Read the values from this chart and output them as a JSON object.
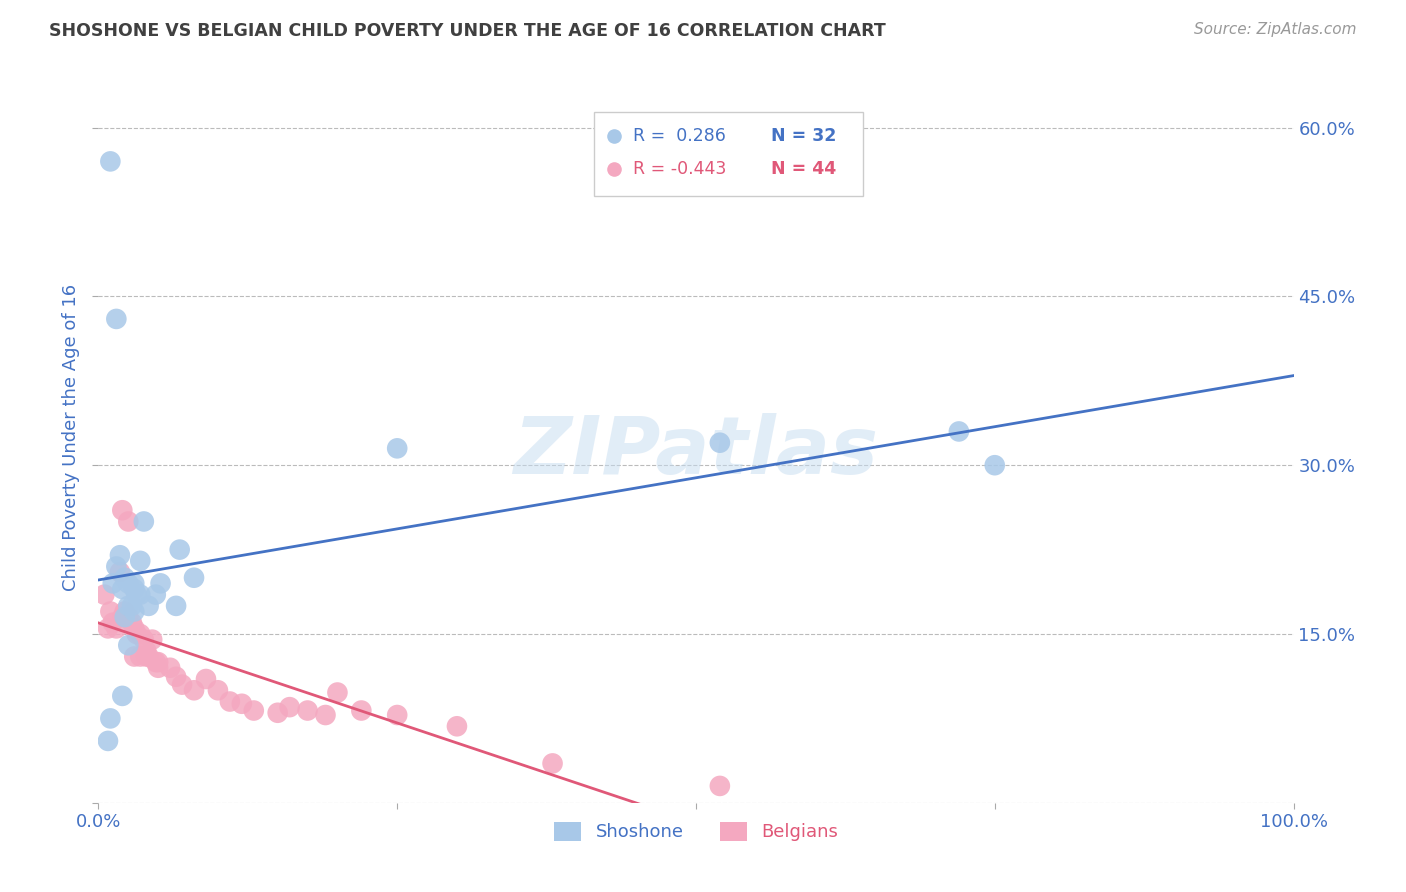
{
  "title": "SHOSHONE VS BELGIAN CHILD POVERTY UNDER THE AGE OF 16 CORRELATION CHART",
  "source": "Source: ZipAtlas.com",
  "ylabel": "Child Poverty Under the Age of 16",
  "xlim": [
    0,
    1.0
  ],
  "ylim": [
    0,
    0.65
  ],
  "xticks": [
    0.0,
    0.25,
    0.5,
    0.75,
    1.0
  ],
  "xtick_labels": [
    "0.0%",
    "",
    "",
    "",
    "100.0%"
  ],
  "yticks": [
    0.0,
    0.15,
    0.3,
    0.45,
    0.6
  ],
  "ytick_labels": [
    "",
    "15.0%",
    "30.0%",
    "45.0%",
    "60.0%"
  ],
  "shoshone_x": [
    0.008,
    0.01,
    0.012,
    0.015,
    0.018,
    0.02,
    0.022,
    0.025,
    0.028,
    0.03,
    0.032,
    0.035,
    0.038,
    0.042,
    0.048,
    0.052,
    0.065,
    0.068,
    0.02,
    0.025,
    0.03,
    0.01,
    0.015,
    0.08,
    0.25,
    0.52,
    0.72,
    0.75,
    0.022,
    0.025,
    0.03,
    0.035
  ],
  "shoshone_y": [
    0.055,
    0.075,
    0.195,
    0.21,
    0.22,
    0.19,
    0.2,
    0.195,
    0.175,
    0.19,
    0.185,
    0.215,
    0.25,
    0.175,
    0.185,
    0.195,
    0.175,
    0.225,
    0.095,
    0.14,
    0.195,
    0.57,
    0.43,
    0.2,
    0.315,
    0.32,
    0.33,
    0.3,
    0.165,
    0.175,
    0.17,
    0.185
  ],
  "belgians_x": [
    0.005,
    0.008,
    0.01,
    0.012,
    0.015,
    0.018,
    0.02,
    0.022,
    0.025,
    0.028,
    0.03,
    0.032,
    0.035,
    0.038,
    0.04,
    0.042,
    0.045,
    0.048,
    0.05,
    0.02,
    0.025,
    0.03,
    0.035,
    0.04,
    0.05,
    0.06,
    0.065,
    0.07,
    0.08,
    0.09,
    0.1,
    0.11,
    0.12,
    0.13,
    0.15,
    0.16,
    0.175,
    0.19,
    0.2,
    0.22,
    0.25,
    0.3,
    0.38,
    0.52
  ],
  "belgians_y": [
    0.185,
    0.155,
    0.17,
    0.16,
    0.155,
    0.205,
    0.165,
    0.17,
    0.165,
    0.16,
    0.155,
    0.15,
    0.15,
    0.145,
    0.135,
    0.13,
    0.145,
    0.125,
    0.12,
    0.26,
    0.25,
    0.13,
    0.13,
    0.13,
    0.125,
    0.12,
    0.112,
    0.105,
    0.1,
    0.11,
    0.1,
    0.09,
    0.088,
    0.082,
    0.08,
    0.085,
    0.082,
    0.078,
    0.098,
    0.082,
    0.078,
    0.068,
    0.035,
    0.015
  ],
  "shoshone_color": "#A8C8E8",
  "belgians_color": "#F4A8C0",
  "shoshone_line_color": "#4472C4",
  "belgians_line_color": "#E05878",
  "legend_r_shoshone": "R =  0.286",
  "legend_n_shoshone": "N = 32",
  "legend_r_belgians": "R = -0.443",
  "legend_n_belgians": "N = 44",
  "shoshone_label": "Shoshone",
  "belgians_label": "Belgians",
  "watermark": "ZIPatlas",
  "background_color": "#FFFFFF",
  "grid_color": "#BBBBBB",
  "title_color": "#404040",
  "axis_label_color": "#4472C4",
  "tick_color": "#4472C4"
}
